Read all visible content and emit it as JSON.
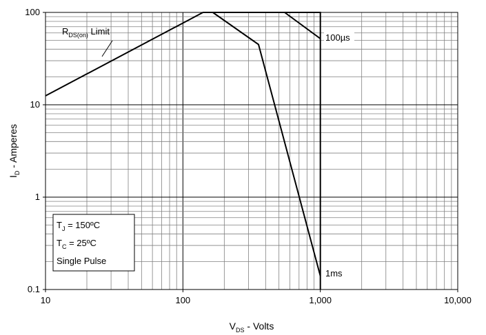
{
  "chart_data": {
    "type": "line",
    "title": "",
    "xlabel": {
      "main": "V",
      "sub": "DS",
      "rest": " - Volts"
    },
    "ylabel": {
      "main": "I",
      "sub": "D",
      "rest": " - Amperes"
    },
    "xscale": "log",
    "yscale": "log",
    "xlim": [
      10,
      10000
    ],
    "ylim": [
      0.1,
      100
    ],
    "grid": true,
    "x_ticks": [
      {
        "value": 10,
        "label": "10"
      },
      {
        "value": 100,
        "label": "100"
      },
      {
        "value": 1000,
        "label": "1,000"
      },
      {
        "value": 10000,
        "label": "10,000"
      }
    ],
    "y_ticks": [
      {
        "value": 0.1,
        "label": "0.1"
      },
      {
        "value": 1,
        "label": "1"
      },
      {
        "value": 10,
        "label": "10"
      },
      {
        "value": 100,
        "label": "100"
      }
    ],
    "series": [
      {
        "points": [
          [
            10,
            12.5
          ],
          [
            140,
            100
          ],
          [
            1000,
            100
          ],
          [
            1000,
            0.1
          ]
        ]
      },
      {
        "name": "100µs",
        "points": [
          [
            550,
            100
          ],
          [
            1000,
            52
          ]
        ]
      },
      {
        "name": "1ms",
        "points": [
          [
            165,
            100
          ],
          [
            355,
            45
          ],
          [
            1000,
            0.14
          ]
        ]
      }
    ],
    "annotations": {
      "rds_limit": {
        "main": "R",
        "sub": "DS(on)",
        "rest": " Limit"
      },
      "label_100us": "100µs",
      "label_1ms": "1ms"
    },
    "conditions": {
      "tj": {
        "main": "T",
        "sub": "J",
        "rest": " = 150ºC"
      },
      "tc": {
        "main": "T",
        "sub": "C",
        "rest": " = 25ºC"
      },
      "pulse": "Single Pulse"
    },
    "colors": {
      "line": "#000000",
      "grid": "#808080",
      "background": "#ffffff"
    }
  }
}
